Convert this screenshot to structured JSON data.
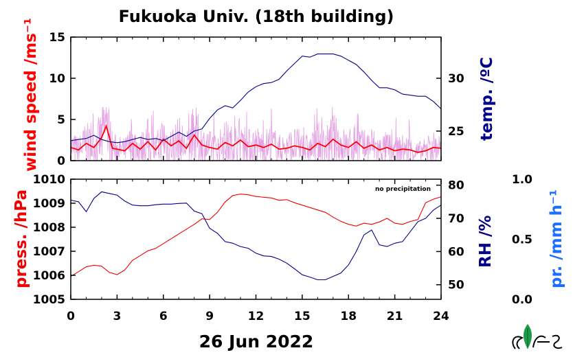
{
  "title": "Fukuoka Univ. (18th building)",
  "date_label": "26 Jun 2022",
  "annotation": "no precipitation",
  "colors": {
    "wind": "#ff0000",
    "wind_raw": "#dd88dd",
    "temp": "#00008b",
    "press": "#ee0000",
    "rh": "#00008b",
    "precip": "#1a6fff",
    "axis": "#000000"
  },
  "logo_icon": "leaf-logo-icon",
  "chart_data": [
    {
      "type": "line",
      "panel": "top",
      "x_ticks": [
        "0",
        "3",
        "6",
        "9",
        "12",
        "15",
        "18",
        "21",
        "24"
      ],
      "xlim": [
        0,
        24
      ],
      "left_axis": {
        "label": "wind speed /ms⁻¹",
        "ylim": [
          0,
          15
        ],
        "ticks": [
          "0",
          "5",
          "10",
          "15"
        ]
      },
      "right_axis": {
        "label": "temp. /ºC",
        "ylim": [
          22.2,
          33.9
        ],
        "ticks": [
          "25",
          "30"
        ]
      },
      "series": [
        {
          "axis": "left",
          "x": [
            0,
            0.5,
            1,
            1.5,
            2,
            2.3,
            2.7,
            3,
            3.5,
            4,
            4.5,
            5,
            5.5,
            6,
            6.5,
            7,
            7.5,
            8,
            8.5,
            9,
            9.5,
            10,
            10.5,
            11,
            11.5,
            12,
            12.5,
            13,
            13.5,
            14,
            14.5,
            15,
            15.5,
            16,
            16.5,
            17,
            17.5,
            18,
            18.5,
            19,
            19.5,
            20,
            20.5,
            21,
            21.5,
            22,
            22.5,
            23,
            23.5,
            24
          ],
          "y": [
            1.6,
            1.3,
            2.1,
            1.6,
            2.8,
            4.2,
            1.5,
            1.4,
            1.2,
            2.1,
            1.4,
            2.3,
            1.3,
            2.6,
            1.8,
            2.4,
            1.5,
            3.1,
            1.9,
            1.6,
            1.4,
            2.2,
            1.8,
            2.5,
            1.7,
            1.9,
            1.6,
            2.0,
            1.4,
            1.5,
            1.8,
            1.6,
            1.3,
            2.1,
            1.7,
            2.6,
            1.9,
            1.6,
            2.3,
            1.5,
            1.9,
            1.3,
            1.6,
            1.2,
            1.4,
            1.3,
            1.0,
            1.2,
            1.6,
            1.5
          ]
        },
        {
          "axis": "right",
          "x": [
            0,
            0.5,
            1,
            1.5,
            2,
            2.5,
            3,
            3.5,
            4,
            4.5,
            5,
            5.5,
            6,
            6.5,
            7,
            7.5,
            8,
            8.5,
            9,
            9.5,
            10,
            10.5,
            11,
            11.5,
            12,
            12.5,
            13,
            13.5,
            14,
            14.5,
            15,
            15.5,
            16,
            16.5,
            17,
            17.5,
            18,
            18.5,
            19,
            19.5,
            20,
            20.5,
            21,
            21.5,
            22,
            22.5,
            23,
            23.5,
            24
          ],
          "y": [
            24.1,
            24.2,
            24.3,
            24.6,
            24.2,
            24.0,
            23.9,
            24.0,
            24.2,
            24.4,
            24.2,
            24.3,
            24.1,
            24.5,
            24.9,
            24.5,
            25.0,
            25.2,
            26.2,
            27.0,
            27.4,
            27.2,
            27.9,
            28.7,
            29.2,
            29.5,
            29.6,
            29.9,
            30.7,
            31.4,
            32.1,
            32.0,
            32.3,
            32.3,
            32.3,
            32.1,
            31.7,
            31.3,
            30.6,
            29.8,
            29.1,
            29.1,
            28.9,
            28.5,
            28.4,
            28.3,
            28.3,
            27.8,
            27.1
          ]
        }
      ]
    },
    {
      "type": "line",
      "panel": "bottom",
      "x_ticks": [
        "0",
        "3",
        "6",
        "9",
        "12",
        "15",
        "18",
        "21",
        "24"
      ],
      "xlim": [
        0,
        24
      ],
      "xlabel": "26 Jun 2022",
      "left_axis": {
        "label": "press. /hPa",
        "ylim": [
          1005,
          1010
        ],
        "ticks": [
          "1005",
          "1006",
          "1007",
          "1008",
          "1009",
          "1010"
        ]
      },
      "right_axis": {
        "label": "RH /%",
        "ylim": [
          45.6,
          81.8
        ],
        "ticks": [
          "50",
          "60",
          "70",
          "80"
        ]
      },
      "far_right_axis": {
        "label": "pr. /mm h⁻¹",
        "ylim": [
          0.0,
          1.0
        ],
        "ticks": [
          "0.0",
          "0.5",
          "1.0"
        ]
      },
      "series": [
        {
          "axis": "left",
          "x": [
            0,
            0.5,
            1,
            1.5,
            2,
            2.5,
            3,
            3.5,
            4,
            4.5,
            5,
            5.5,
            6,
            6.5,
            7,
            7.5,
            8,
            8.5,
            9,
            9.5,
            10,
            10.5,
            11,
            11.5,
            12,
            12.5,
            13,
            13.5,
            14,
            14.5,
            15,
            15.5,
            16,
            16.5,
            17,
            17.5,
            18,
            18.5,
            19,
            19.5,
            20,
            20.5,
            21,
            21.5,
            22,
            22.5,
            23,
            23.5,
            24
          ],
          "y": [
            1005.95,
            1006.15,
            1006.35,
            1006.42,
            1006.38,
            1006.12,
            1006.03,
            1006.22,
            1006.62,
            1006.82,
            1007.02,
            1007.12,
            1007.32,
            1007.52,
            1007.72,
            1007.92,
            1008.12,
            1008.35,
            1008.32,
            1008.62,
            1009.05,
            1009.32,
            1009.38,
            1009.35,
            1009.28,
            1009.25,
            1009.22,
            1009.12,
            1009.15,
            1009.02,
            1008.92,
            1008.82,
            1008.72,
            1008.62,
            1008.42,
            1008.25,
            1008.12,
            1008.05,
            1008.17,
            1008.12,
            1008.22,
            1008.37,
            1008.17,
            1008.12,
            1008.24,
            1008.32,
            1009.02,
            1009.17,
            1009.27
          ]
        },
        {
          "axis": "right",
          "x": [
            0,
            0.5,
            1,
            1.5,
            2,
            2.5,
            3,
            3.5,
            4,
            4.5,
            5,
            5.5,
            6,
            6.5,
            7,
            7.5,
            8,
            8.5,
            9,
            9.5,
            10,
            10.5,
            11,
            11.5,
            12,
            12.5,
            13,
            13.5,
            14,
            14.5,
            15,
            15.5,
            16,
            16.5,
            17,
            17.5,
            18,
            18.5,
            19,
            19.5,
            20,
            20.5,
            21,
            21.5,
            22,
            22.5,
            23,
            23.5,
            24
          ],
          "y": [
            75.5,
            75.0,
            72.0,
            76.0,
            78.0,
            77.5,
            77.0,
            75.2,
            74.0,
            73.8,
            73.8,
            74.1,
            74.3,
            74.3,
            74.5,
            74.6,
            72.2,
            71.4,
            67.0,
            65.5,
            63.0,
            62.5,
            61.5,
            61.0,
            59.5,
            58.7,
            58.5,
            57.7,
            56.5,
            54.8,
            53.0,
            52.3,
            51.5,
            51.5,
            52.5,
            53.5,
            56.0,
            60.0,
            65.0,
            66.5,
            62.0,
            61.5,
            62.5,
            63.0,
            66.0,
            69.0,
            70.0,
            72.5,
            74.0
          ]
        },
        {
          "axis": "far_right",
          "x": [
            0,
            24
          ],
          "y": [
            0,
            0
          ]
        }
      ]
    }
  ]
}
